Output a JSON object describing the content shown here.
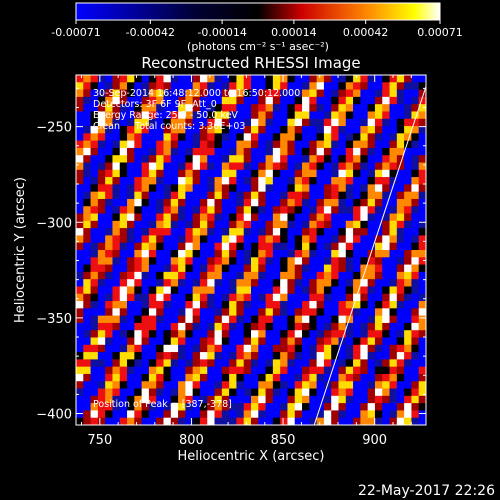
{
  "colorbar": {
    "tick_labels": [
      "-0.00071",
      "-0.00042",
      "-0.00014",
      "0.00014",
      "0.00042",
      "0.00071"
    ],
    "tick_values": [
      -0.00071,
      -0.00042,
      -0.00014,
      0.00014,
      0.00042,
      0.00071
    ],
    "range": [
      -0.00071,
      0.00071
    ],
    "unit_label": "(photons cm⁻² s⁻¹ asec⁻²)",
    "colors": [
      "#0000ff",
      "#000000",
      "#ff0000",
      "#ffff00",
      "#ffffff"
    ]
  },
  "chart_data": {
    "type": "heatmap",
    "title": "Reconstructed RHESSI Image",
    "xlabel": "Heliocentric X (arcsec)",
    "ylabel": "Heliocentric Y (arcsec)",
    "xlim": [
      737,
      928
    ],
    "ylim": [
      -406,
      -223
    ],
    "xticks": [
      750,
      800,
      850,
      900
    ],
    "yticks": [
      -250,
      -300,
      -350,
      -400
    ],
    "xtick_labels": [
      "750",
      "800",
      "850",
      "900"
    ],
    "ytick_labels": [
      "-250",
      "-300",
      "-350",
      "-400"
    ],
    "grid": false,
    "pattern": "diagonal stripes of alternating intensity (red/yellow/white vs blue/black)",
    "limb_line": {
      "x": [
        867,
        928
      ],
      "y": [
        -406,
        -229
      ]
    },
    "annotations": [
      "30-Sep-2014 16:48:12.000 to 16:50:12.000",
      "Detectors: 3F 6F 9F, Att_0",
      "Energy Range: 25.0 - 50.0 keV",
      "Clean     Total counts: 3.30E+03",
      "Position of Peak = [387,-378]"
    ]
  },
  "footer_date": "22-May-2017 22:26"
}
